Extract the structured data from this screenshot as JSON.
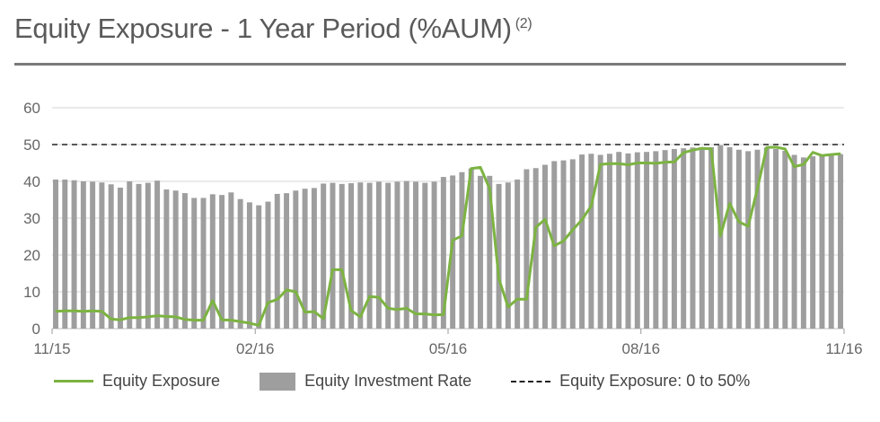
{
  "header": {
    "title": "Equity Exposure - 1 Year Period (%AUM)",
    "footnote": "(2)"
  },
  "legend": {
    "exposure": "Equity Exposure",
    "investment": "Equity Investment Rate",
    "threshold": "Equity Exposure: 0 to 50%"
  },
  "colors": {
    "bars": "#9e9e9e",
    "line": "#7cb342",
    "threshold": "#222222",
    "grid": "#d4d4d4"
  },
  "chart_data": {
    "type": "bar",
    "title": "Equity Exposure - 1 Year Period (%AUM)",
    "ylim": [
      0,
      60
    ],
    "yticks": [
      0,
      10,
      20,
      30,
      40,
      50,
      60
    ],
    "xticks": [
      "11/15",
      "02/16",
      "05/16",
      "08/16",
      "11/16"
    ],
    "grid": true,
    "legend_position": "bottom",
    "reference_line": {
      "name": "Equity Exposure: 0 to 50%",
      "value": 50
    },
    "series": [
      {
        "name": "Equity Investment Rate",
        "kind": "bar",
        "values": [
          40.5,
          40.5,
          40.3,
          40,
          39.9,
          39.7,
          39.2,
          38.3,
          40,
          39.3,
          39.6,
          40.2,
          37.8,
          37.5,
          36.8,
          35.5,
          35.5,
          36.5,
          36.3,
          37,
          35.2,
          34.3,
          33.5,
          34.5,
          36.6,
          36.8,
          37.5,
          38,
          38.2,
          39.4,
          39.6,
          39.3,
          39.5,
          39.7,
          39.6,
          39.9,
          39.6,
          39.9,
          40.1,
          39.9,
          39.6,
          39.9,
          41.2,
          41.6,
          42.5,
          43.5,
          41.5,
          41.5,
          39.3,
          39.7,
          40.5,
          43.3,
          43.6,
          44.5,
          45.5,
          45.7,
          46,
          47.3,
          47.5,
          47.2,
          47.5,
          48,
          47.6,
          47.9,
          48,
          48.2,
          48.5,
          48.8,
          49,
          49.2,
          48.9,
          49.3,
          49.8,
          49.3,
          48.6,
          48.2,
          48.6,
          49.2,
          48.8,
          48.3,
          47.2,
          46.5,
          46.8,
          47.3,
          47.2,
          47.4
        ]
      },
      {
        "name": "Equity Exposure",
        "kind": "line",
        "values": [
          4.7,
          4.8,
          4.8,
          4.7,
          4.8,
          4.7,
          2.6,
          2.4,
          3,
          3,
          3.2,
          3.5,
          3.3,
          3.2,
          2.5,
          2.3,
          2.3,
          7.6,
          2.4,
          2.3,
          1.9,
          1.5,
          0.9,
          7.1,
          7.9,
          10.5,
          10,
          4.5,
          4.6,
          2.7,
          16,
          16,
          4.9,
          3.2,
          8.7,
          8.5,
          5.5,
          5.2,
          5.5,
          4,
          4,
          3.7,
          3.8,
          24,
          25.2,
          43.5,
          43.8,
          38,
          13.5,
          5.9,
          8,
          8,
          27.5,
          29.7,
          22.5,
          23.8,
          26.8,
          29.6,
          33.3,
          44.6,
          44.8,
          44.8,
          44.5,
          45,
          45,
          44.9,
          45.2,
          45.3,
          47.8,
          48.5,
          49,
          48.8,
          25.2,
          34,
          29,
          27.8,
          38,
          49.2,
          49.3,
          48.8,
          44,
          44.6,
          47.9,
          47,
          47.3,
          47.5
        ]
      }
    ]
  }
}
